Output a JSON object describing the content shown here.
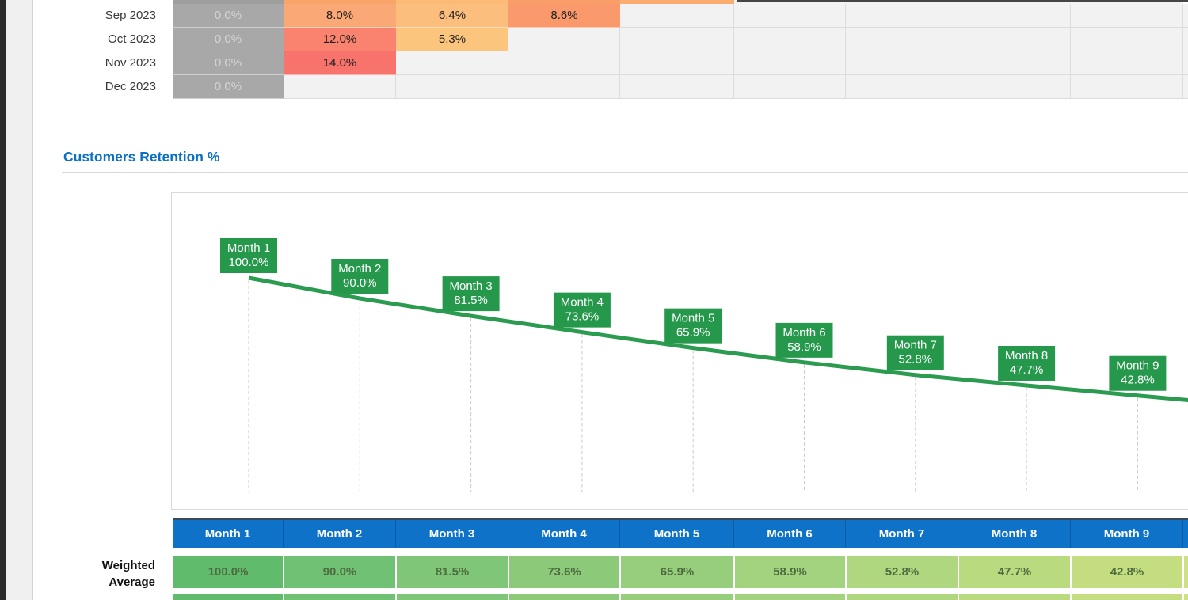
{
  "section_title": {
    "text": "Customers Retention %",
    "color": "#0C70C4"
  },
  "cohort_table": {
    "row_labels": [
      "Sep 2023",
      "Oct 2023",
      "Nov 2023",
      "Dec 2023"
    ],
    "zero_cell": {
      "bg": "#A8A8A8",
      "fg": "#D5D5D5"
    },
    "empty_cell_bg": "#F2F2F2",
    "rows": [
      [
        {
          "v": "0.0%",
          "bg": "#A8A8A8",
          "fg": "#D5D5D5"
        },
        {
          "v": "8.0%",
          "bg": "#FBA877"
        },
        {
          "v": "6.4%",
          "bg": "#FCBE7D"
        },
        {
          "v": "8.6%",
          "bg": "#FA9A6C"
        },
        null,
        null,
        null,
        null,
        null
      ],
      [
        {
          "v": "0.0%",
          "bg": "#A8A8A8",
          "fg": "#D5D5D5"
        },
        {
          "v": "12.0%",
          "bg": "#F9836F"
        },
        {
          "v": "5.3%",
          "bg": "#FCC57E"
        },
        null,
        null,
        null,
        null,
        null,
        null
      ],
      [
        {
          "v": "0.0%",
          "bg": "#A8A8A8",
          "fg": "#D5D5D5"
        },
        {
          "v": "14.0%",
          "bg": "#F8736B"
        },
        null,
        null,
        null,
        null,
        null,
        null,
        null
      ],
      [
        {
          "v": "0.0%",
          "bg": "#A8A8A8",
          "fg": "#D5D5D5"
        },
        null,
        null,
        null,
        null,
        null,
        null,
        null,
        null
      ]
    ],
    "partial_top_row_bgs": [
      "#9E9E9E",
      "#F9A469",
      "#FBBA75",
      "#F99E68",
      "#FBAC6F",
      "#F2F2F2",
      "#F2F2F2",
      "#F2F2F2",
      "#F2F2F2"
    ]
  },
  "chart_data": {
    "type": "line",
    "title": "Customers Retention %",
    "x": [
      "Month 1",
      "Month 2",
      "Month 3",
      "Month 4",
      "Month 5",
      "Month 6",
      "Month 7",
      "Month 8",
      "Month 9"
    ],
    "values": [
      100.0,
      90.0,
      81.5,
      73.6,
      65.9,
      58.9,
      52.8,
      47.7,
      42.8
    ],
    "value_labels": [
      "100.0%",
      "90.0%",
      "81.5%",
      "73.6%",
      "65.9%",
      "58.9%",
      "52.8%",
      "47.7%",
      "42.8%"
    ],
    "line_color": "#2B9B50",
    "label_bg": "#26984C",
    "label_text_color": "#FFFFFF",
    "gridlines": "vertical-dashed",
    "gridline_color": "#C9C9C9",
    "legend": "none",
    "xlabel": "",
    "ylabel": "",
    "note": "line continues past Month 9 beyond right edge of view"
  },
  "summary_table": {
    "headers": [
      "Month 1",
      "Month 2",
      "Month 3",
      "Month 4",
      "Month 5",
      "Month 6",
      "Month 7",
      "Month 8",
      "Month 9"
    ],
    "header_bg": "#0E73C8",
    "header_fg": "#FFFFFF",
    "row_label_lines": [
      "Weighted",
      "Average"
    ],
    "cells": [
      {
        "v": "100.0%",
        "bg": "#61BB6D"
      },
      {
        "v": "90.0%",
        "bg": "#71C175"
      },
      {
        "v": "81.5%",
        "bg": "#7FC678"
      },
      {
        "v": "73.6%",
        "bg": "#8CCA7A"
      },
      {
        "v": "65.9%",
        "bg": "#97CE7C"
      },
      {
        "v": "58.9%",
        "bg": "#A3D37E"
      },
      {
        "v": "52.8%",
        "bg": "#AFD77F"
      },
      {
        "v": "47.7%",
        "bg": "#BADA80"
      },
      {
        "v": "42.8%",
        "bg": "#C4DD80"
      }
    ],
    "overflow_cell_bg": "#CFE083",
    "partial_second_row_bgs": [
      "#61BB6D",
      "#71C175",
      "#7FC678",
      "#8CCA7A",
      "#97CE7C",
      "#A3D37E",
      "#AFD77F",
      "#BADA80",
      "#C4DD80"
    ]
  }
}
